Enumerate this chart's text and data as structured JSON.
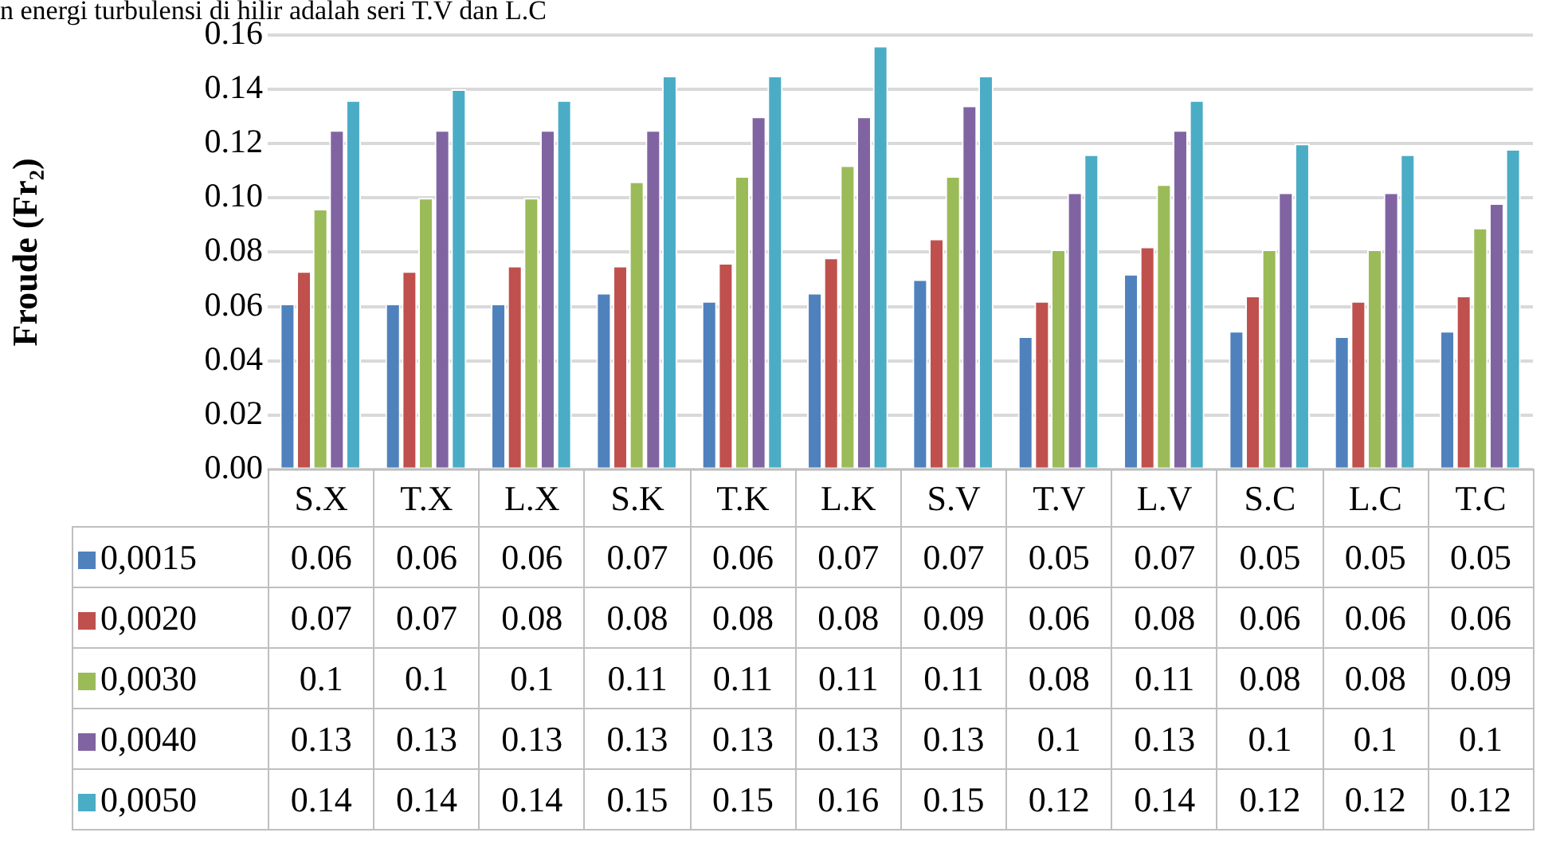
{
  "chart_data": {
    "type": "bar",
    "ylabel": "Froude (Fr₂)",
    "annotations": [
      "n energi turbulensi di hilir adalah seri T.V dan L.C"
    ],
    "categories": [
      "S.X",
      "T.X",
      "L.X",
      "S.K",
      "T.K",
      "L.K",
      "S.V",
      "T.V",
      "L.V",
      "S.C",
      "L.C",
      "T.C"
    ],
    "ylim": [
      0,
      0.16
    ],
    "yticks": [
      {
        "value": 0,
        "label": "0.00"
      },
      {
        "value": 0.02,
        "label": "0.02"
      },
      {
        "value": 0.04,
        "label": "0.04"
      },
      {
        "value": 0.06,
        "label": "0.06"
      },
      {
        "value": 0.08,
        "label": "0.08"
      },
      {
        "value": 0.1,
        "label": "0.10"
      },
      {
        "value": 0.12,
        "label": "0.12"
      },
      {
        "value": 0.14,
        "label": "0.14"
      },
      {
        "value": 0.16,
        "label": "0.16"
      }
    ],
    "grid": "y",
    "legend": "bottom",
    "series": [
      {
        "name": "0,0015",
        "color": "#4f81bd",
        "values": [
          0.061,
          0.061,
          0.061,
          0.065,
          0.062,
          0.065,
          0.07,
          0.049,
          0.072,
          0.051,
          0.049,
          0.051
        ],
        "value_labels": [
          "0.06",
          "0.06",
          "0.06",
          "0.07",
          "0.06",
          "0.07",
          "0.07",
          "0.05",
          "0.07",
          "0.05",
          "0.05",
          "0.05"
        ]
      },
      {
        "name": "0,0020",
        "color": "#c0504d",
        "values": [
          0.073,
          0.073,
          0.075,
          0.075,
          0.076,
          0.078,
          0.085,
          0.062,
          0.082,
          0.064,
          0.062,
          0.064
        ],
        "value_labels": [
          "0.07",
          "0.07",
          "0.08",
          "0.08",
          "0.08",
          "0.08",
          "0.09",
          "0.06",
          "0.08",
          "0.06",
          "0.06",
          "0.06"
        ]
      },
      {
        "name": "0,0030",
        "color": "#9bbb59",
        "values": [
          0.096,
          0.1,
          0.1,
          0.106,
          0.108,
          0.112,
          0.108,
          0.081,
          0.105,
          0.081,
          0.081,
          0.089
        ],
        "value_labels": [
          "0.1",
          "0.1",
          "0.1",
          "0.11",
          "0.11",
          "0.11",
          "0.11",
          "0.08",
          "0.11",
          "0.08",
          "0.08",
          "0.09"
        ]
      },
      {
        "name": "0,0040",
        "color": "#8064a2",
        "values": [
          0.125,
          0.125,
          0.125,
          0.125,
          0.13,
          0.13,
          0.134,
          0.102,
          0.125,
          0.102,
          0.102,
          0.098
        ],
        "value_labels": [
          "0.13",
          "0.13",
          "0.13",
          "0.13",
          "0.13",
          "0.13",
          "0.13",
          "0.1",
          "0.13",
          "0.1",
          "0.1",
          "0.1"
        ]
      },
      {
        "name": "0,0050",
        "color": "#4bacc6",
        "values": [
          0.136,
          0.14,
          0.136,
          0.145,
          0.145,
          0.156,
          0.145,
          0.116,
          0.136,
          0.12,
          0.116,
          0.118
        ],
        "value_labels": [
          "0.14",
          "0.14",
          "0.14",
          "0.15",
          "0.15",
          "0.16",
          "0.15",
          "0.12",
          "0.14",
          "0.12",
          "0.12",
          "0.12"
        ]
      }
    ]
  }
}
